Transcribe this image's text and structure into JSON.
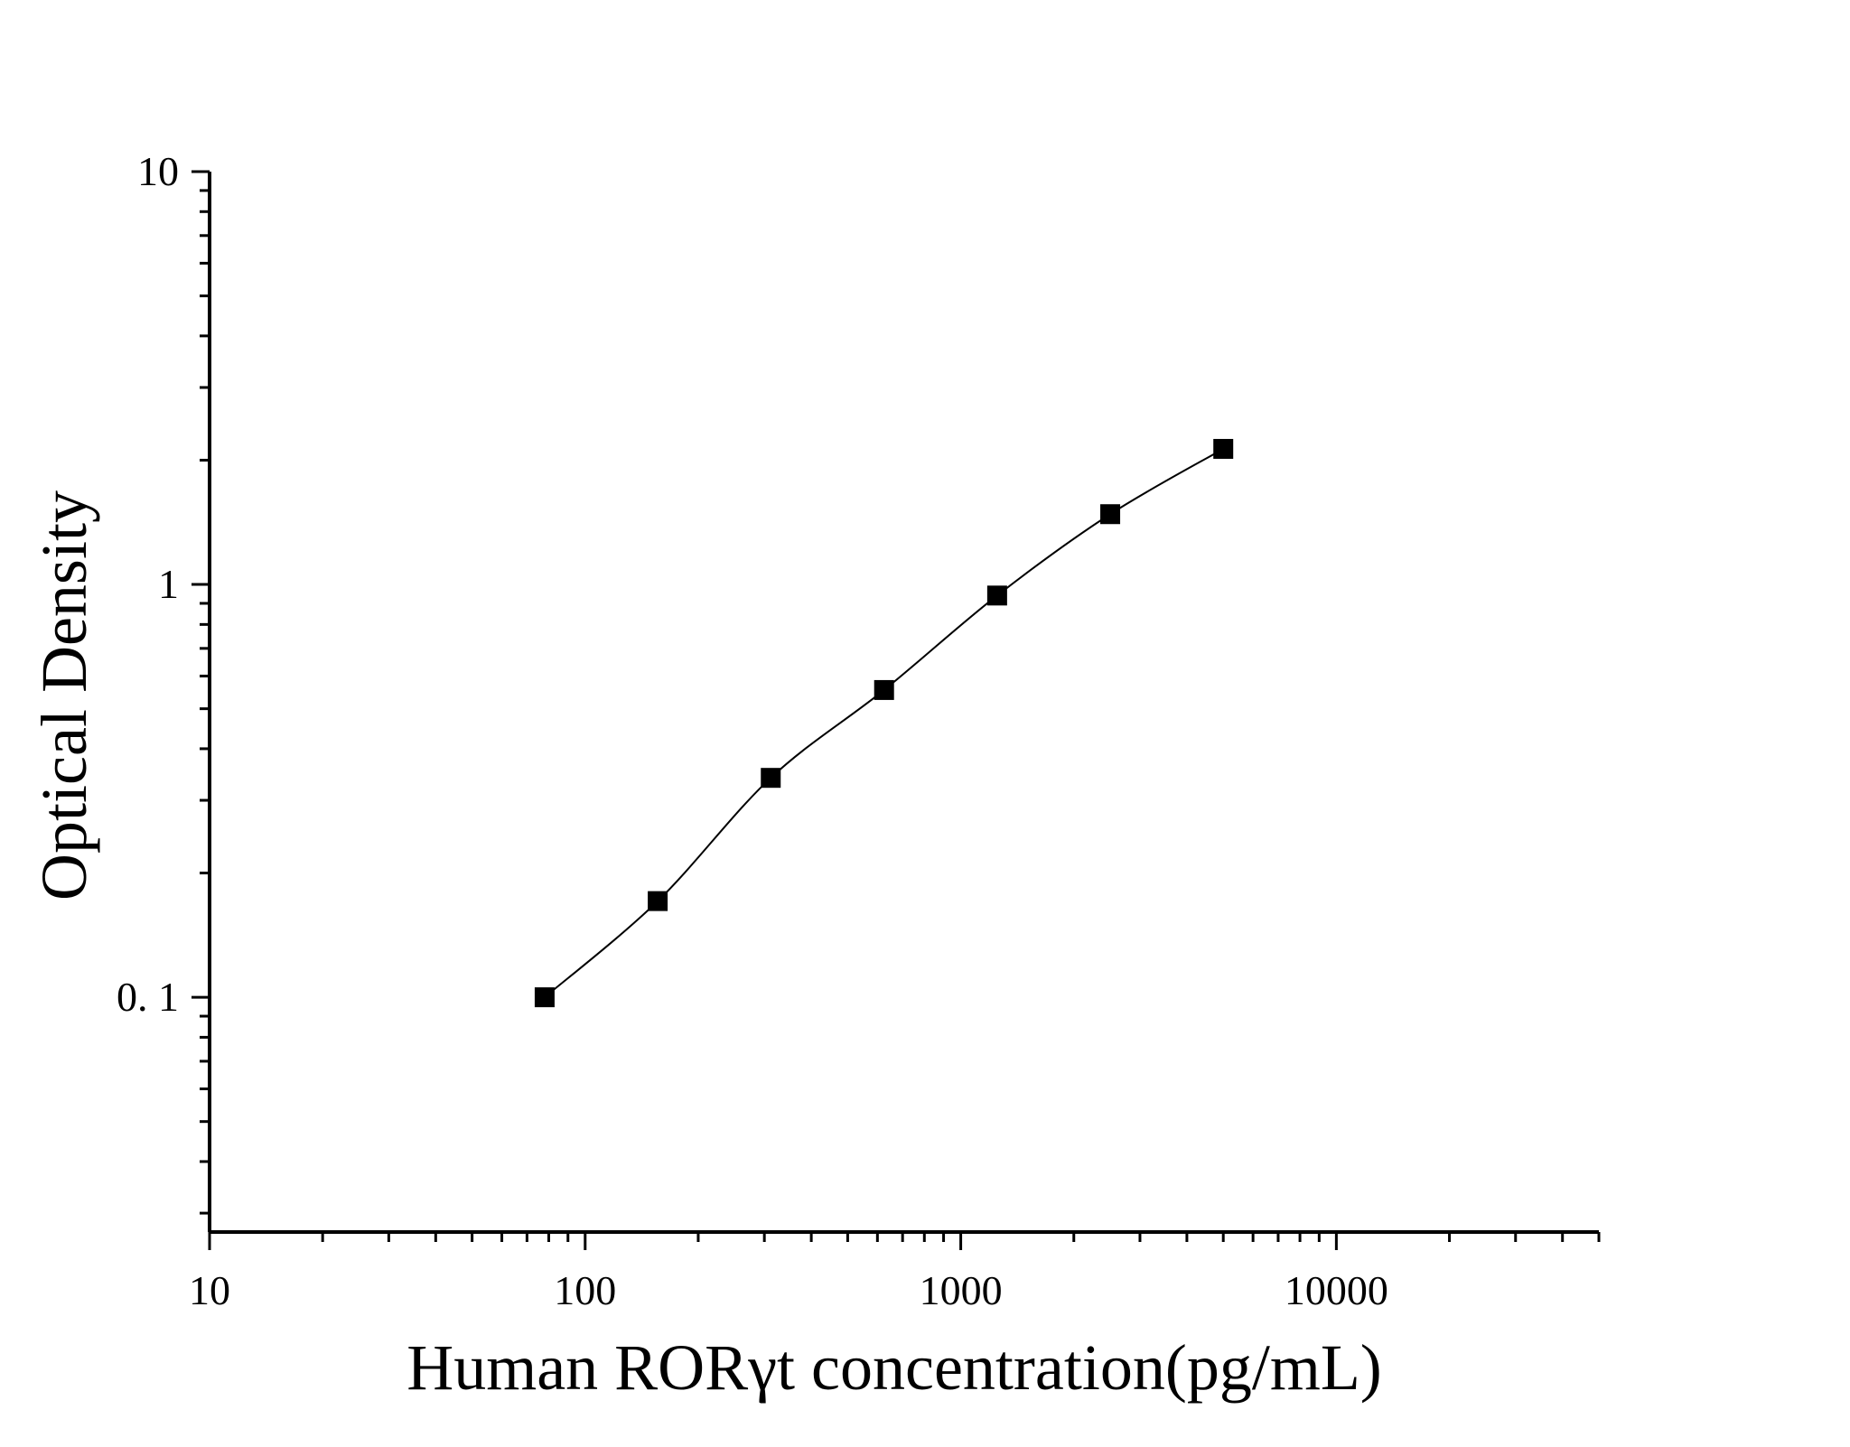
{
  "chart_data": {
    "type": "scatter",
    "title": "",
    "xlabel": "Human RORγt concentration(pg/mL)",
    "ylabel": "Optical Density",
    "x_scale": "log",
    "y_scale": "log",
    "xlim": [
      10,
      50000
    ],
    "ylim": [
      0.027,
      10
    ],
    "x_ticks": [
      {
        "value": 10,
        "label": "10"
      },
      {
        "value": 100,
        "label": "100"
      },
      {
        "value": 1000,
        "label": "1000"
      },
      {
        "value": 10000,
        "label": "10000"
      }
    ],
    "y_ticks": [
      {
        "value": 0.1,
        "label": "0. 1"
      },
      {
        "value": 1,
        "label": "1"
      },
      {
        "value": 10,
        "label": "10"
      }
    ],
    "grid": false,
    "legend": "none",
    "series": [
      {
        "marker": "square",
        "color": "#000000",
        "points": [
          {
            "x": 78,
            "y": 0.1
          },
          {
            "x": 156,
            "y": 0.171
          },
          {
            "x": 312,
            "y": 0.34
          },
          {
            "x": 625,
            "y": 0.555
          },
          {
            "x": 1250,
            "y": 0.94
          },
          {
            "x": 2500,
            "y": 1.48
          },
          {
            "x": 5000,
            "y": 2.13
          }
        ],
        "fit_line": true
      }
    ]
  }
}
